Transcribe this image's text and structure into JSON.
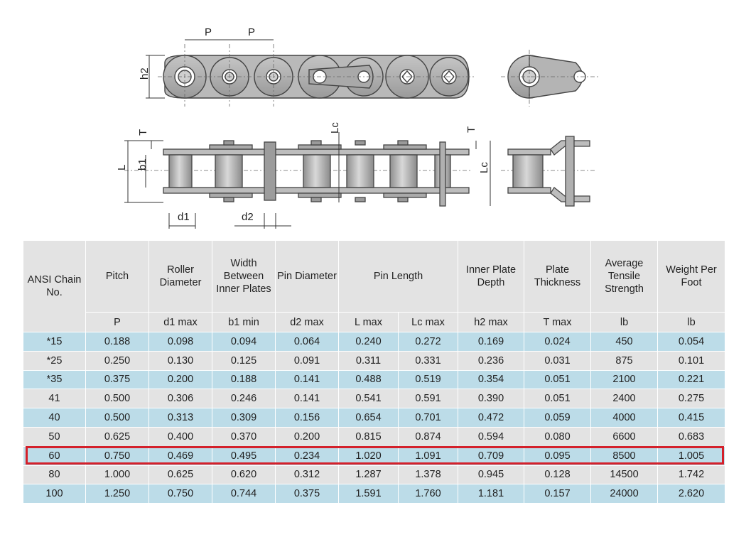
{
  "diagram": {
    "labels": {
      "P": "P",
      "h2": "h2",
      "T": "T",
      "L": "L",
      "b1": "b1",
      "d1": "d1",
      "d2": "d2",
      "Lc": "Lc"
    }
  },
  "table": {
    "headers": [
      "ANSI Chain No.",
      "Pitch",
      "Roller Diameter",
      "Width Between Inner Plates",
      "Pin Diameter",
      "Pin Length",
      "Inner Plate Depth",
      "Plate Thickness",
      "Average Tensile Strength",
      "Weight Per Foot"
    ],
    "units": [
      "P",
      "d1 max",
      "b1 min",
      "d2 max",
      "L max",
      "Lc max",
      "h2 max",
      "T max",
      "lb",
      "lb"
    ],
    "rows": [
      [
        "*15",
        "0.188",
        "0.098",
        "0.094",
        "0.064",
        "0.240",
        "0.272",
        "0.169",
        "0.024",
        "450",
        "0.054"
      ],
      [
        "*25",
        "0.250",
        "0.130",
        "0.125",
        "0.091",
        "0.311",
        "0.331",
        "0.236",
        "0.031",
        "875",
        "0.101"
      ],
      [
        "*35",
        "0.375",
        "0.200",
        "0.188",
        "0.141",
        "0.488",
        "0.519",
        "0.354",
        "0.051",
        "2100",
        "0.221"
      ],
      [
        "41",
        "0.500",
        "0.306",
        "0.246",
        "0.141",
        "0.541",
        "0.591",
        "0.390",
        "0.051",
        "2400",
        "0.275"
      ],
      [
        "40",
        "0.500",
        "0.313",
        "0.309",
        "0.156",
        "0.654",
        "0.701",
        "0.472",
        "0.059",
        "4000",
        "0.415"
      ],
      [
        "50",
        "0.625",
        "0.400",
        "0.370",
        "0.200",
        "0.815",
        "0.874",
        "0.594",
        "0.080",
        "6600",
        "0.683"
      ],
      [
        "60",
        "0.750",
        "0.469",
        "0.495",
        "0.234",
        "1.020",
        "1.091",
        "0.709",
        "0.095",
        "8500",
        "1.005"
      ],
      [
        "80",
        "1.000",
        "0.625",
        "0.620",
        "0.312",
        "1.287",
        "1.378",
        "0.945",
        "0.128",
        "14500",
        "1.742"
      ],
      [
        "100",
        "1.250",
        "0.750",
        "0.744",
        "0.375",
        "1.591",
        "1.760",
        "1.181",
        "0.157",
        "24000",
        "2.620"
      ]
    ],
    "highlighted_row": "60"
  },
  "colors": {
    "row_blue": "#bcdce8",
    "row_grey": "#e3e3e3",
    "highlight": "#d4202a"
  }
}
